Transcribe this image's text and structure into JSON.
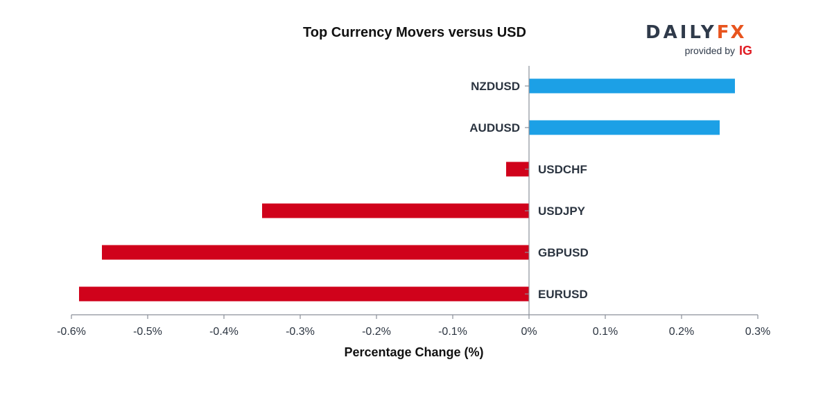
{
  "chart_data": {
    "type": "bar",
    "orientation": "horizontal",
    "title": "Top Currency Movers versus USD",
    "xlabel": "Percentage Change (%)",
    "ylabel": "",
    "categories": [
      "NZDUSD",
      "AUDUSD",
      "USDCHF",
      "USDJPY",
      "GBPUSD",
      "EURUSD"
    ],
    "values": [
      0.27,
      0.25,
      -0.03,
      -0.35,
      -0.56,
      -0.59
    ],
    "xlim": [
      -0.6,
      0.3
    ],
    "ticks": [
      -0.6,
      -0.5,
      -0.4,
      -0.3,
      -0.2,
      -0.1,
      0,
      0.1,
      0.2,
      0.3
    ],
    "tick_labels": [
      "-0.6%",
      "-0.5%",
      "-0.4%",
      "-0.3%",
      "-0.2%",
      "-0.1%",
      "0%",
      "0.1%",
      "0.2%",
      "0.3%"
    ],
    "colors": {
      "positive": "#1ca0e6",
      "negative": "#d0021b",
      "axis": "#8a8f99"
    },
    "grid": false
  },
  "brand": {
    "name_main": "DAILY",
    "name_accent": "FX",
    "tagline": "provided by",
    "partner": "IG"
  }
}
